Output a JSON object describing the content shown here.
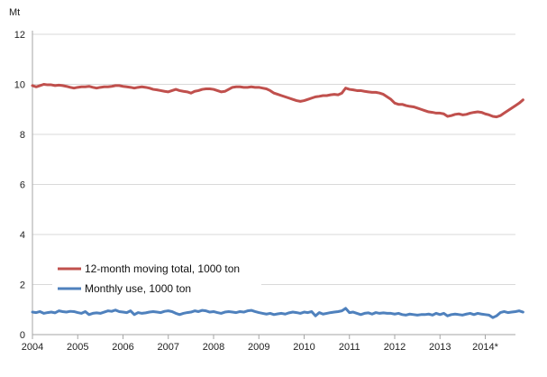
{
  "chart_data": {
    "type": "line",
    "title": "",
    "unit_label": "Mt",
    "xlabel": "",
    "ylabel": "",
    "x_ticks": [
      "2004",
      "2005",
      "2006",
      "2007",
      "2008",
      "2009",
      "2010",
      "2011",
      "2012",
      "2013",
      "2014*"
    ],
    "x_range": [
      "2004-01",
      "2014-09"
    ],
    "y_ticks": [
      "0",
      "2",
      "4",
      "6",
      "8",
      "10",
      "12"
    ],
    "ylim": [
      0,
      12
    ],
    "grid": "horizontal",
    "legend_position": "bottom-left",
    "colors": {
      "moving_total": "#c0504d",
      "monthly": "#4f81bd",
      "grid": "#d9d9d9",
      "axis": "#a6a6a6"
    },
    "series": [
      {
        "name": "12-month moving total,  1000 ton",
        "key": "moving_total",
        "start": "2004-01",
        "values": [
          9.95,
          9.9,
          9.95,
          10.0,
          9.98,
          9.98,
          9.95,
          9.97,
          9.95,
          9.92,
          9.88,
          9.85,
          9.88,
          9.9,
          9.9,
          9.92,
          9.88,
          9.85,
          9.88,
          9.9,
          9.9,
          9.92,
          9.95,
          9.95,
          9.92,
          9.9,
          9.88,
          9.85,
          9.88,
          9.9,
          9.88,
          9.85,
          9.8,
          9.78,
          9.75,
          9.72,
          9.7,
          9.75,
          9.8,
          9.75,
          9.72,
          9.7,
          9.65,
          9.72,
          9.75,
          9.8,
          9.82,
          9.82,
          9.8,
          9.75,
          9.7,
          9.72,
          9.8,
          9.88,
          9.9,
          9.9,
          9.88,
          9.88,
          9.9,
          9.88,
          9.88,
          9.85,
          9.82,
          9.75,
          9.65,
          9.6,
          9.55,
          9.5,
          9.45,
          9.4,
          9.35,
          9.32,
          9.35,
          9.4,
          9.45,
          9.5,
          9.52,
          9.55,
          9.55,
          9.58,
          9.6,
          9.58,
          9.65,
          9.85,
          9.8,
          9.78,
          9.75,
          9.75,
          9.72,
          9.7,
          9.68,
          9.68,
          9.65,
          9.6,
          9.5,
          9.4,
          9.25,
          9.2,
          9.2,
          9.15,
          9.12,
          9.1,
          9.05,
          9.0,
          8.95,
          8.9,
          8.88,
          8.85,
          8.85,
          8.82,
          8.72,
          8.75,
          8.8,
          8.82,
          8.78,
          8.8,
          8.85,
          8.88,
          8.9,
          8.88,
          8.82,
          8.78,
          8.72,
          8.7,
          8.75,
          8.85,
          8.95,
          9.05,
          9.15,
          9.25,
          9.38
        ]
      },
      {
        "name": "Monthly use, 1000 ton",
        "key": "monthly",
        "start": "2004-01",
        "values": [
          0.9,
          0.88,
          0.92,
          0.85,
          0.88,
          0.9,
          0.87,
          0.95,
          0.92,
          0.9,
          0.93,
          0.92,
          0.88,
          0.85,
          0.92,
          0.8,
          0.85,
          0.87,
          0.85,
          0.9,
          0.95,
          0.93,
          0.98,
          0.92,
          0.9,
          0.88,
          0.95,
          0.8,
          0.88,
          0.85,
          0.87,
          0.9,
          0.92,
          0.9,
          0.88,
          0.93,
          0.95,
          0.92,
          0.85,
          0.8,
          0.85,
          0.88,
          0.9,
          0.95,
          0.92,
          0.97,
          0.95,
          0.9,
          0.92,
          0.88,
          0.85,
          0.9,
          0.92,
          0.9,
          0.88,
          0.92,
          0.9,
          0.95,
          0.97,
          0.92,
          0.88,
          0.85,
          0.82,
          0.85,
          0.8,
          0.83,
          0.85,
          0.82,
          0.87,
          0.9,
          0.88,
          0.85,
          0.9,
          0.88,
          0.92,
          0.75,
          0.88,
          0.82,
          0.85,
          0.88,
          0.9,
          0.92,
          0.95,
          1.05,
          0.88,
          0.9,
          0.85,
          0.8,
          0.85,
          0.87,
          0.82,
          0.88,
          0.85,
          0.87,
          0.85,
          0.85,
          0.82,
          0.85,
          0.8,
          0.78,
          0.82,
          0.8,
          0.78,
          0.8,
          0.8,
          0.82,
          0.78,
          0.85,
          0.8,
          0.85,
          0.75,
          0.8,
          0.82,
          0.8,
          0.78,
          0.82,
          0.85,
          0.8,
          0.85,
          0.82,
          0.8,
          0.78,
          0.68,
          0.75,
          0.88,
          0.92,
          0.88,
          0.9,
          0.92,
          0.95,
          0.9
        ]
      }
    ]
  }
}
